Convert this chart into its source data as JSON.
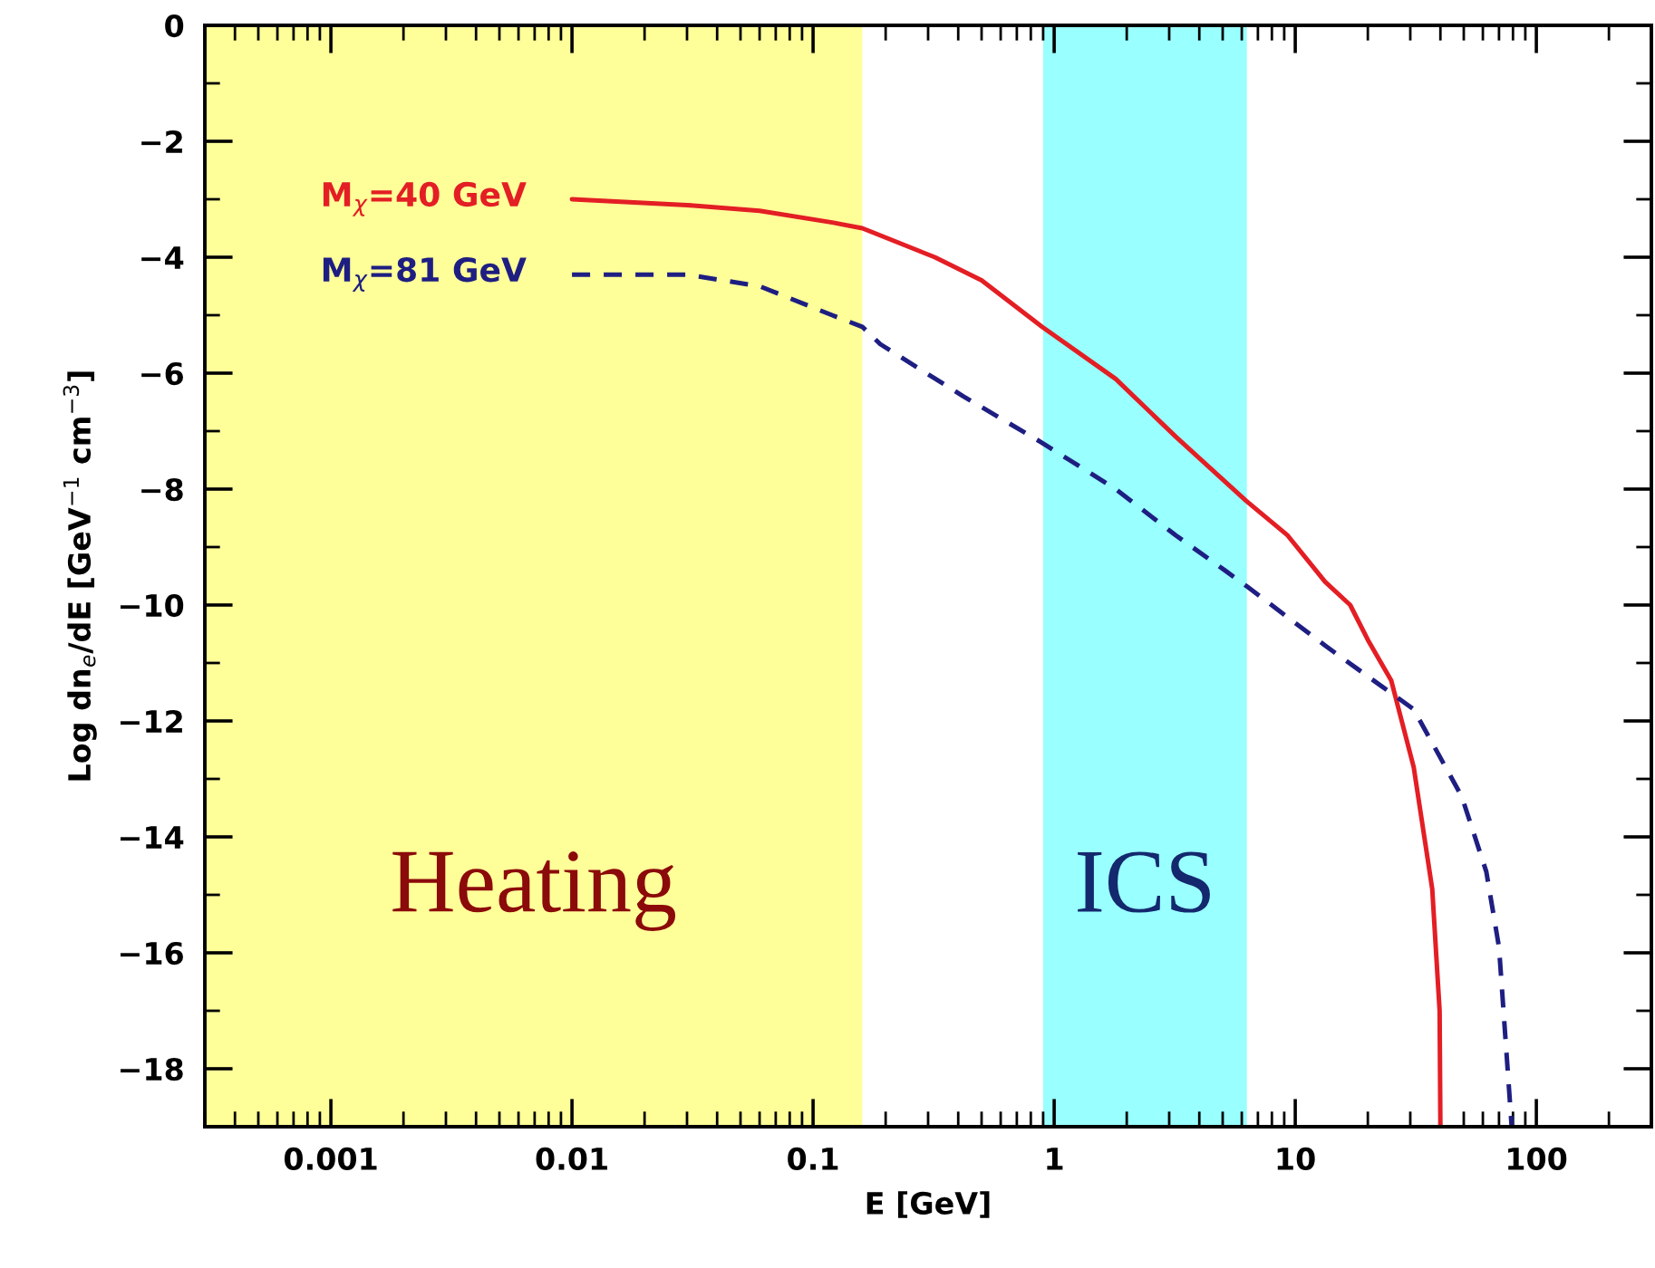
{
  "chart_data": {
    "type": "line",
    "xlabel": "E [GeV]",
    "ylabel": "Log dn$_{e}$/dE [GeV$^{−1}$ cm$^{−3}$]",
    "log": "x",
    "xlim": [
      0.0003,
      300
    ],
    "xticks": [
      0.001,
      0.01,
      0.1,
      1,
      10,
      100
    ],
    "ylim": [
      -19,
      0
    ],
    "yticks": [
      -18,
      -16,
      -14,
      -12,
      -10,
      -8,
      -6,
      -4,
      -2,
      0
    ],
    "series": [
      {
        "name": "M$_{χ}$=40 GeV",
        "color": "#e31e24",
        "line_style": "solid",
        "x": [
          0.01,
          0.03,
          0.06,
          0.12,
          0.16,
          0.32,
          0.5,
          0.89,
          1.8,
          3.2,
          6.25,
          9.3,
          13.3,
          16.9,
          20,
          25,
          31,
          37,
          39.7,
          40
        ],
        "values": [
          -3.0,
          -3.1,
          -3.2,
          -3.4,
          -3.5,
          -4.0,
          -4.4,
          -5.2,
          -6.1,
          -7.1,
          -8.2,
          -8.8,
          -9.6,
          -10.0,
          -10.6,
          -11.3,
          -12.8,
          -14.9,
          -17.0,
          -19
        ]
      },
      {
        "name": "M$_{χ}$=81 GeV",
        "color": "#1e1e82",
        "line_style": "dashed",
        "x": [
          0.01,
          0.03,
          0.06,
          0.12,
          0.16,
          0.19,
          0.42,
          0.89,
          1.8,
          3.2,
          5.1,
          6.4,
          13.3,
          31,
          49,
          62,
          70,
          76,
          79
        ],
        "values": [
          -4.3,
          -4.3,
          -4.5,
          -5.0,
          -5.2,
          -5.5,
          -6.4,
          -7.2,
          -8.0,
          -8.8,
          -9.4,
          -9.7,
          -10.7,
          -11.8,
          -13.3,
          -14.6,
          -15.9,
          -18.0,
          -19
        ]
      }
    ],
    "bands": [
      {
        "axis": "x",
        "from": 0.0003,
        "to": 0.16,
        "label": "Heating",
        "color": "#ffff00"
      },
      {
        "axis": "x",
        "from": 0.9,
        "to": 6.3,
        "label": "ICS",
        "color": "#00ffff"
      }
    ]
  }
}
